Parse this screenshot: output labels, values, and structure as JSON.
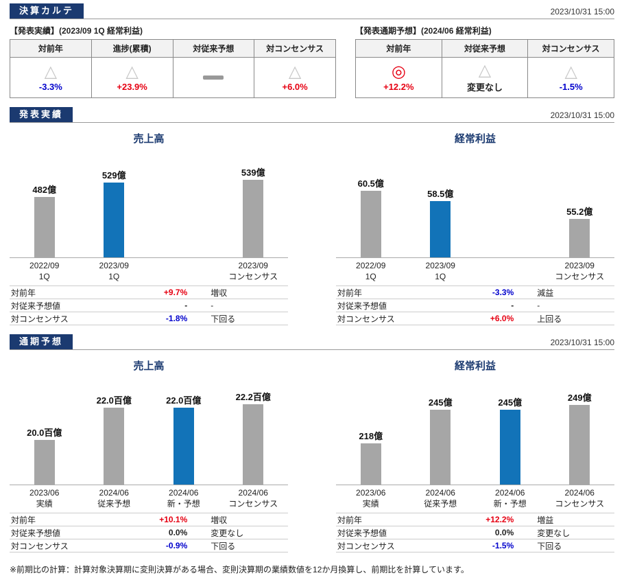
{
  "page": {
    "title_badge": "決算カルテ",
    "timestamp": "2023/10/31 15:00"
  },
  "colors": {
    "navy": "#1b3a70",
    "bar_blue": "#1273b8",
    "bar_gray": "#a6a6a6",
    "text_red": "#e60012",
    "text_blue": "#0000cc",
    "symbol_gray": "#c8c8c8"
  },
  "summary": {
    "left": {
      "caption": "【発表実績】(2023/09 1Q 経常利益)",
      "columns": [
        {
          "header": "対前年",
          "symbol": "triangle",
          "value": "-3.3%",
          "value_color": "blue"
        },
        {
          "header": "進捗(累積)",
          "symbol": "triangle",
          "value": "+23.9%",
          "value_color": "red"
        },
        {
          "header": "対従来予想",
          "symbol": "dash",
          "value": "",
          "value_color": "black"
        },
        {
          "header": "対コンセンサス",
          "symbol": "triangle",
          "value": "+6.0%",
          "value_color": "red"
        }
      ]
    },
    "right": {
      "caption": "【発表通期予想】(2024/06 経常利益)",
      "columns": [
        {
          "header": "対前年",
          "symbol": "double-circle",
          "value": "+12.2%",
          "value_color": "red"
        },
        {
          "header": "対従来予想",
          "symbol": "triangle",
          "value": "変更なし",
          "value_color": "black"
        },
        {
          "header": "対コンセンサス",
          "symbol": "triangle",
          "value": "-1.5%",
          "value_color": "blue"
        }
      ]
    }
  },
  "sections": [
    {
      "badge": "発表実績",
      "timestamp": "2023/10/31 15:00"
    },
    {
      "badge": "通期予想",
      "timestamp": "2023/10/31 15:00"
    }
  ],
  "chart_data": [
    {
      "type": "bar",
      "title": "売上高",
      "unit": "億",
      "ylim": [
        280,
        600
      ],
      "slots": [
        {
          "label_line1": "2022/09",
          "label_line2": "1Q",
          "value": 482,
          "display": "482億",
          "color": "gray"
        },
        {
          "label_line1": "2023/09",
          "label_line2": "1Q",
          "value": 529,
          "display": "529億",
          "color": "blue"
        },
        null,
        {
          "label_line1": "2023/09",
          "label_line2": "コンセンサス",
          "value": 539,
          "display": "539億",
          "color": "gray"
        }
      ],
      "stats": [
        {
          "label": "対前年",
          "value": "+9.7%",
          "value_color": "red",
          "note": "増収"
        },
        {
          "label": "対従来予想値",
          "value": "-",
          "value_color": "black",
          "note": "-"
        },
        {
          "label": "対コンセンサス",
          "value": "-1.8%",
          "value_color": "blue",
          "note": "下回る"
        }
      ]
    },
    {
      "type": "bar",
      "title": "経常利益",
      "unit": "億",
      "ylim": [
        48,
        66
      ],
      "slots": [
        {
          "label_line1": "2022/09",
          "label_line2": "1Q",
          "value": 60.5,
          "display": "60.5億",
          "color": "gray"
        },
        {
          "label_line1": "2023/09",
          "label_line2": "1Q",
          "value": 58.5,
          "display": "58.5億",
          "color": "blue"
        },
        null,
        {
          "label_line1": "2023/09",
          "label_line2": "コンセンサス",
          "value": 55.2,
          "display": "55.2億",
          "color": "gray"
        }
      ],
      "stats": [
        {
          "label": "対前年",
          "value": "-3.3%",
          "value_color": "blue",
          "note": "減益"
        },
        {
          "label": "対従来予想値",
          "value": "-",
          "value_color": "black",
          "note": "-"
        },
        {
          "label": "対コンセンサス",
          "value": "+6.0%",
          "value_color": "red",
          "note": "上回る"
        }
      ]
    },
    {
      "type": "bar",
      "title": "売上高",
      "unit": "百億",
      "ylim": [
        17.2,
        23.2
      ],
      "slots": [
        {
          "label_line1": "2023/06",
          "label_line2": "実績",
          "value": 20.0,
          "display": "20.0百億",
          "color": "gray"
        },
        {
          "label_line1": "2024/06",
          "label_line2": "従来予想",
          "value": 22.0,
          "display": "22.0百億",
          "color": "gray"
        },
        {
          "label_line1": "2024/06",
          "label_line2": "新・予想",
          "value": 22.0,
          "display": "22.0百億",
          "color": "blue"
        },
        {
          "label_line1": "2024/06",
          "label_line2": "コンセンサス",
          "value": 22.2,
          "display": "22.2百億",
          "color": "gray"
        }
      ],
      "stats": [
        {
          "label": "対前年",
          "value": "+10.1%",
          "value_color": "red",
          "note": "増収"
        },
        {
          "label": "対従来予想値",
          "value": "0.0%",
          "value_color": "black",
          "note": "変更なし"
        },
        {
          "label": "対コンセンサス",
          "value": "-0.9%",
          "value_color": "blue",
          "note": "下回る"
        }
      ]
    },
    {
      "type": "bar",
      "title": "経常利益",
      "unit": "億",
      "ylim": [
        185,
        262
      ],
      "slots": [
        {
          "label_line1": "2023/06",
          "label_line2": "実績",
          "value": 218,
          "display": "218億",
          "color": "gray"
        },
        {
          "label_line1": "2024/06",
          "label_line2": "従来予想",
          "value": 245,
          "display": "245億",
          "color": "gray"
        },
        {
          "label_line1": "2024/06",
          "label_line2": "新・予想",
          "value": 245,
          "display": "245億",
          "color": "blue"
        },
        {
          "label_line1": "2024/06",
          "label_line2": "コンセンサス",
          "value": 249,
          "display": "249億",
          "color": "gray"
        }
      ],
      "stats": [
        {
          "label": "対前年",
          "value": "+12.2%",
          "value_color": "red",
          "note": "増益"
        },
        {
          "label": "対従来予想値",
          "value": "0.0%",
          "value_color": "black",
          "note": "変更なし"
        },
        {
          "label": "対コンセンサス",
          "value": "-1.5%",
          "value_color": "blue",
          "note": "下回る"
        }
      ]
    }
  ],
  "footnote": "※前期比の計算：計算対象決算期に変則決算がある場合、変則決算期の業績数値を12か月換算し、前期比を計算しています。"
}
